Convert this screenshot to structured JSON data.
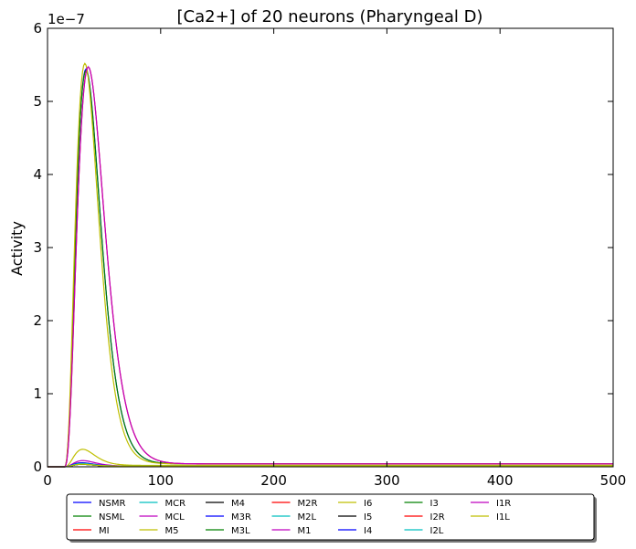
{
  "chart_data": {
    "type": "line",
    "title": "[Ca2+] of 20 neurons (Pharyngeal D)",
    "xlabel": "",
    "ylabel": "Activity",
    "y_offset_text": "1e−7",
    "xlim": [
      0,
      500
    ],
    "ylim": [
      0,
      6e-07
    ],
    "x_ticks": [
      0,
      100,
      200,
      300,
      400,
      500
    ],
    "x_tick_labels": [
      "0",
      "100",
      "200",
      "300",
      "400",
      "500"
    ],
    "y_ticks": [
      0,
      1e-07,
      2e-07,
      3e-07,
      4e-07,
      5e-07,
      6e-07
    ],
    "y_tick_labels": [
      "0",
      "1",
      "2",
      "3",
      "4",
      "5",
      "6"
    ],
    "grid": false,
    "legend_position": "bottom-center",
    "legend_columns": 8,
    "series": [
      {
        "name": "NSMR",
        "color": "#0000ff",
        "peak_x": 34,
        "peak_y": 5.42e-07,
        "tail_y": 4e-09
      },
      {
        "name": "NSML",
        "color": "#008000",
        "peak_x": 34,
        "peak_y": 5.4e-07,
        "tail_y": 4e-09
      },
      {
        "name": "MI",
        "color": "#ff0000",
        "peak_x": 30,
        "peak_y": 5e-09,
        "tail_y": 1e-09
      },
      {
        "name": "MCR",
        "color": "#00bfbf",
        "peak_x": 30,
        "peak_y": 4e-09,
        "tail_y": 1e-09
      },
      {
        "name": "MCL",
        "color": "#bf00bf",
        "peak_x": 30,
        "peak_y": 4e-09,
        "tail_y": 1e-09
      },
      {
        "name": "M5",
        "color": "#bfbf00",
        "peak_x": 31,
        "peak_y": 2.3e-08,
        "tail_y": 2e-09
      },
      {
        "name": "M4",
        "color": "#000000",
        "peak_x": 30,
        "peak_y": 3e-09,
        "tail_y": 1e-09
      },
      {
        "name": "M3R",
        "color": "#0000ff",
        "peak_x": 30,
        "peak_y": 3e-09,
        "tail_y": 1e-09
      },
      {
        "name": "M3L",
        "color": "#008000",
        "peak_x": 30,
        "peak_y": 3e-09,
        "tail_y": 1e-09
      },
      {
        "name": "M2R",
        "color": "#ff0000",
        "peak_x": 30,
        "peak_y": 3e-09,
        "tail_y": 1e-09
      },
      {
        "name": "M2L",
        "color": "#00bfbf",
        "peak_x": 30,
        "peak_y": 3e-09,
        "tail_y": 1e-09
      },
      {
        "name": "M1",
        "color": "#bf00bf",
        "peak_x": 31,
        "peak_y": 8e-09,
        "tail_y": 1e-09
      },
      {
        "name": "I6",
        "color": "#bfbf00",
        "peak_x": 33,
        "peak_y": 5.5e-07,
        "tail_y": 4e-09
      },
      {
        "name": "I5",
        "color": "#000000",
        "peak_x": 30,
        "peak_y": 3e-09,
        "tail_y": 1e-09
      },
      {
        "name": "I4",
        "color": "#0000ff",
        "peak_x": 30,
        "peak_y": 5e-09,
        "tail_y": 1e-09
      },
      {
        "name": "I3",
        "color": "#008000",
        "peak_x": 30,
        "peak_y": 3e-09,
        "tail_y": 1e-09
      },
      {
        "name": "I2R",
        "color": "#ff0000",
        "peak_x": 36,
        "peak_y": 5.45e-07,
        "tail_y": 4e-09
      },
      {
        "name": "I2L",
        "color": "#00bfbf",
        "peak_x": 30,
        "peak_y": 4e-09,
        "tail_y": 1e-09
      },
      {
        "name": "I1R",
        "color": "#bf00bf",
        "peak_x": 36,
        "peak_y": 5.45e-07,
        "tail_y": 4e-09
      },
      {
        "name": "I1L",
        "color": "#bfbf00",
        "peak_x": 30,
        "peak_y": 3e-09,
        "tail_y": 1e-09
      }
    ]
  }
}
